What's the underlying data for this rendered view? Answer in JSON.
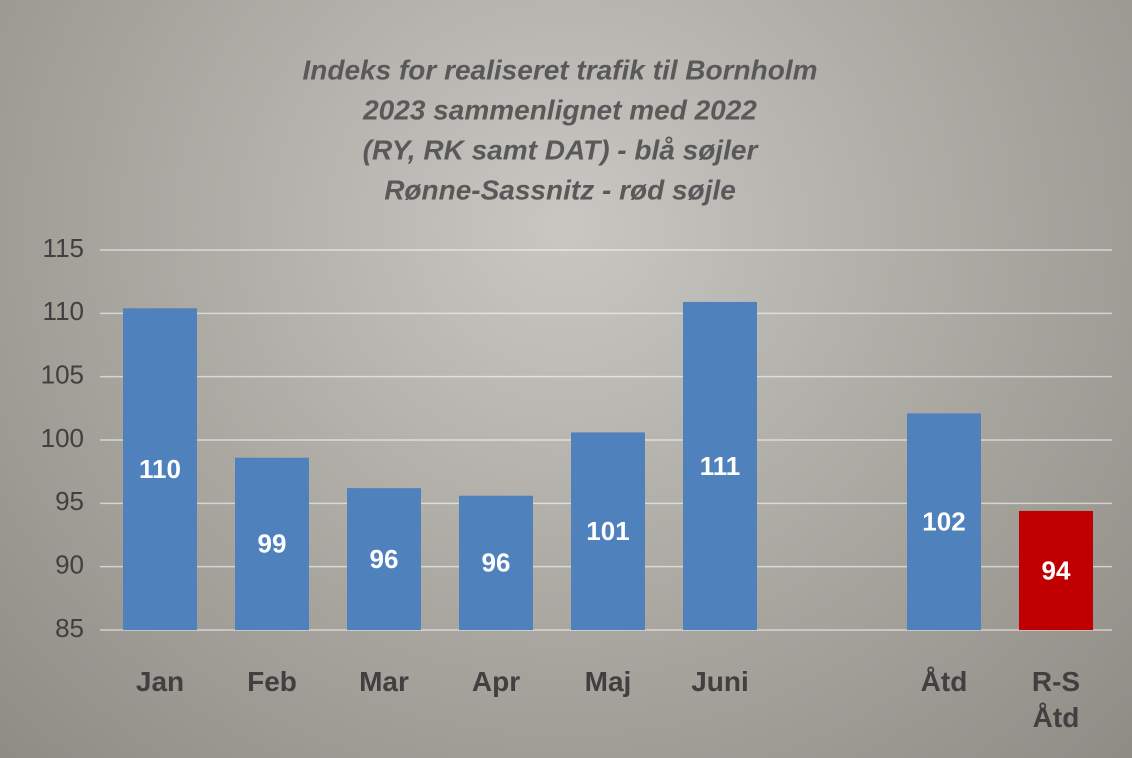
{
  "chart_data": {
    "type": "bar",
    "title": [
      "Indeks for realiseret trafik til Bornholm",
      "2023 sammenlignet med 2022",
      "(RY, RK samt DAT) - blå søjler",
      "Rønne-Sassnitz - rød søjle"
    ],
    "categories": [
      "Jan",
      "Feb",
      "Mar",
      "Apr",
      "Maj",
      "Juni",
      null,
      "Åtd",
      "R-S Åtd"
    ],
    "values": [
      110.4,
      98.6,
      96.2,
      95.6,
      100.6,
      110.9,
      null,
      102.1,
      94.4
    ],
    "value_labels": [
      "110",
      "99",
      "96",
      "96",
      "101",
      "111",
      null,
      "102",
      "94"
    ],
    "colors": [
      "#4f81bd",
      "#4f81bd",
      "#4f81bd",
      "#4f81bd",
      "#4f81bd",
      "#4f81bd",
      null,
      "#4f81bd",
      "#c00000"
    ],
    "ylim": [
      85,
      115
    ],
    "yticks": [
      85,
      90,
      95,
      100,
      105,
      110,
      115
    ],
    "grid": true
  }
}
